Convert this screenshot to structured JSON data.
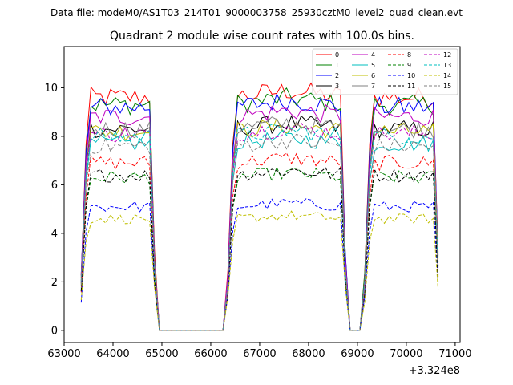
{
  "chart_data": {
    "type": "line",
    "suptitle": "Data file: modeM0/AS1T03_214T01_9000003758_25930cztM0_level2_quad_clean.evt",
    "title": "Quadrant 2 module wise count rates with 100.0s bins.",
    "xlabel": "",
    "ylabel": "",
    "offset_label": "+3.324e8",
    "xlim": [
      63000,
      71100
    ],
    "ylim": [
      -0.5,
      11.7
    ],
    "xticks": [
      63000,
      64000,
      65000,
      66000,
      67000,
      68000,
      69000,
      70000,
      71000
    ],
    "yticks": [
      0,
      2,
      4,
      6,
      8,
      10
    ],
    "grid": false,
    "legend_position": "top-right",
    "bin_start": 63350,
    "bin_step": 100,
    "bin_count": 74,
    "segments": [
      [
        63350,
        64850
      ],
      [
        66350,
        68750
      ],
      [
        69150,
        70650
      ]
    ],
    "series": [
      {
        "name": "0",
        "color": "#ff0000",
        "dashed": false,
        "level": 9.6
      },
      {
        "name": "1",
        "color": "#008000",
        "dashed": false,
        "level": 9.3
      },
      {
        "name": "2",
        "color": "#0000ff",
        "dashed": false,
        "level": 9.2
      },
      {
        "name": "3",
        "color": "#000000",
        "dashed": false,
        "level": 8.3
      },
      {
        "name": "4",
        "color": "#bf00bf",
        "dashed": false,
        "level": 8.8
      },
      {
        "name": "5",
        "color": "#00bfbf",
        "dashed": false,
        "level": 7.7
      },
      {
        "name": "6",
        "color": "#bfbf00",
        "dashed": false,
        "level": 8.2
      },
      {
        "name": "7",
        "color": "#808080",
        "dashed": false,
        "level": 8.3
      },
      {
        "name": "8",
        "color": "#ff0000",
        "dashed": true,
        "level": 6.9
      },
      {
        "name": "9",
        "color": "#008000",
        "dashed": true,
        "level": 6.3
      },
      {
        "name": "10",
        "color": "#0000ff",
        "dashed": true,
        "level": 5.1
      },
      {
        "name": "11",
        "color": "#000000",
        "dashed": true,
        "level": 6.4
      },
      {
        "name": "12",
        "color": "#bf00bf",
        "dashed": true,
        "level": 8.1
      },
      {
        "name": "13",
        "color": "#00bfbf",
        "dashed": true,
        "level": 8.0
      },
      {
        "name": "14",
        "color": "#bfbf00",
        "dashed": true,
        "level": 4.6
      },
      {
        "name": "15",
        "color": "#808080",
        "dashed": true,
        "level": 7.6
      }
    ]
  }
}
